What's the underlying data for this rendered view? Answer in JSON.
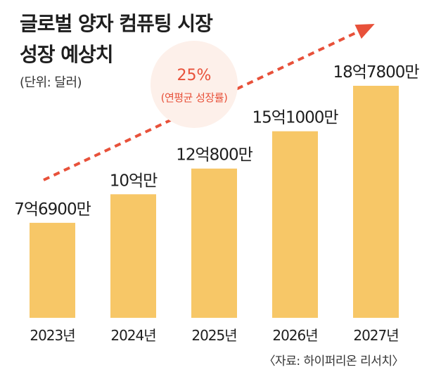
{
  "title_lines": [
    "글로벌 양자 컴퓨팅 시장",
    "성장 예상치"
  ],
  "unit": "(단위: 달러)",
  "source": "〈자료: 하이퍼리온 리서치〉",
  "callout": {
    "value": "25%",
    "label": "(연평균 성장률)"
  },
  "colors": {
    "bar": "#F7C767",
    "arrow": "#E8513A",
    "callout_bg": "#FDF0EA",
    "callout_text": "#E8513A"
  },
  "chart_data": {
    "type": "bar",
    "title": "글로벌 양자 컴퓨팅 시장 성장 예상치",
    "unit": "(단위: 달러)",
    "categories": [
      "2023년",
      "2024년",
      "2025년",
      "2026년",
      "2027년"
    ],
    "values": [
      769000000,
      1000000000,
      1208000000,
      1510000000,
      1878000000
    ],
    "data_labels": [
      "7억6900만",
      "10억만",
      "12억800만",
      "15억1000만",
      "18억7800만"
    ],
    "annotation": "25% (연평균 성장률)",
    "grid": false
  }
}
